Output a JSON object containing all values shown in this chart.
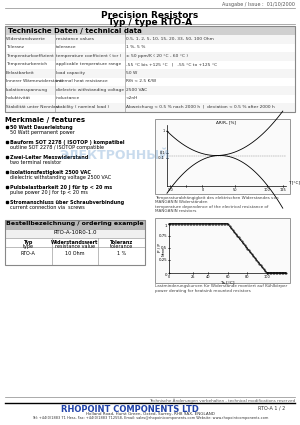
{
  "title_line1": "Precision Resistors",
  "title_line2": "Typ / type RTO-A",
  "issue": "Ausgabe / Issue :  01/10/2000",
  "tech_header": "Technische Daten / technical data",
  "tech_rows": [
    [
      "Widerstandswerte",
      "resistance values",
      "0.5, 1, 2, 5, 10, 15, 20, 33, 50, 100 Ohm"
    ],
    [
      "Toleranz",
      "tolerance",
      "1 %, 5 %"
    ],
    [
      "Temperaturkoeffizient",
      "temperature coefficient ( tcr )",
      "± 50 ppm/K ( 20 °C - 60 °C )"
    ],
    [
      "Temperaturbereich",
      "applicable temperature range",
      "-55 °C bis +125 °C   |   -55 °C to +125 °C"
    ],
    [
      "Belastbarkeit",
      "load capacity",
      "50 W"
    ],
    [
      "Innerer Wärmewiderstand",
      "internal heat resistance",
      "Rθi < 2.5 K/W"
    ],
    [
      "Isolationsspannung",
      "dielectric withstanding voltage",
      "2500 VAC"
    ],
    [
      "Induktivität",
      "inductance",
      "<2nH"
    ],
    [
      "Stabilität unter Nennlast",
      "stability ( nominal load )",
      "Abweichung < 0.5 % nach 2000 h  |  deviation < 0.5 % after 2000 h"
    ]
  ],
  "features_header": "Merkmale / features",
  "features": [
    [
      "50 Watt Dauerleistung",
      "50 Watt permanent power"
    ],
    [
      "Bauform SOT 2278 ( ISOTOP ) kompatibel",
      "outline SOT 2278 / ISOTOP compatible"
    ],
    [
      "Zwei-Leiter Messwiderstand",
      "two terminal resistor"
    ],
    [
      "Isolationsfestigkeit 2500 VAC",
      "dielectric withstanding voltage 2500 VAC"
    ],
    [
      "Pulsbelastbarkeit 20 J für tp < 20 ms",
      "pulse power 20 J for tp < 20 ms"
    ],
    [
      "Stromanschluss über Schraubverbindung",
      "current connection via  screws"
    ]
  ],
  "order_header": "Bestellbezeichnung / ordering example",
  "order_example": "RTO-A-10R0-1.0",
  "order_cols": [
    "Typ\ntype",
    "Widerstandswert\nresistance value",
    "Toleranz\ntolerance"
  ],
  "order_data": [
    "RTO-A",
    "10 Ohm",
    "1 %"
  ],
  "graph1_caption": "Temperaturabhängigkeit des elektrischen Widerstandes von\nMANGANIN Widerständen\ntemperature dependence of the electrical resistance of\nMANGANIN resistors",
  "graph2_caption": "Lastminderungskurven für Widerstände montiert auf Kühlkörper\npower derating for heatsink mounted resistors",
  "footer_note": "Technische Änderungen vorbehalten - technical modifications reserved",
  "footer_company": "RHOPOINT COMPONENTS LTD",
  "footer_address": "Holland Road, Hurst Green, Oxted, Surrey, RH8 9AX, ENGLAND",
  "footer_tel": "Tel: +44(0)1883 71 Hess, Fax: +44(0)1883 712558, Email: sales@rhopointcomponents.com Website: www.rhopointcomponents.com",
  "footer_code": "RTO-A 1 / 2",
  "watermark": "ЭЛЕКТРОННЫЙ",
  "bg_color": "#ffffff",
  "header_bg": "#e8e8e8",
  "table_border": "#888888",
  "tech_header_bg": "#c8c8c8",
  "order_header_bg": "#b0b0b0"
}
